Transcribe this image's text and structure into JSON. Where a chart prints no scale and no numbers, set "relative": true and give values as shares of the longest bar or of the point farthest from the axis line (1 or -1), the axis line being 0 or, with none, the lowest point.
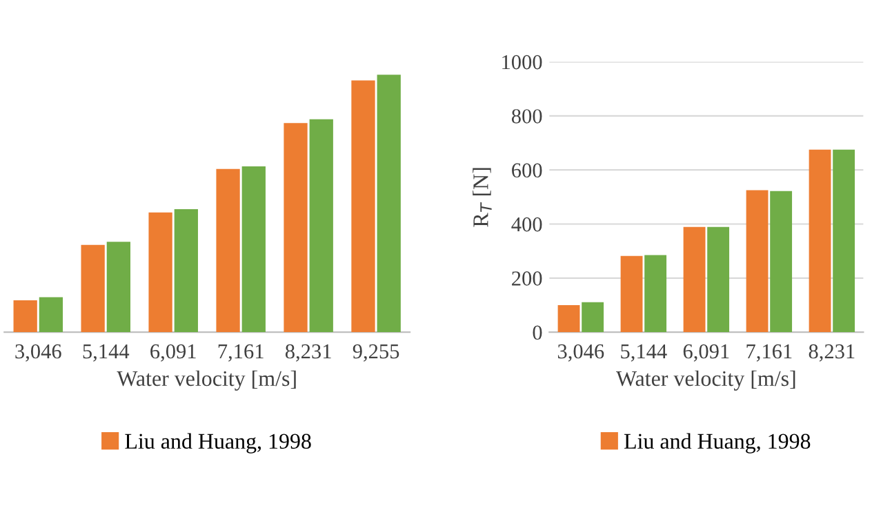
{
  "chart_data": [
    {
      "type": "bar",
      "relative": true,
      "categories": [
        "3,046",
        "5,144",
        "6,091",
        "7,161",
        "8,231",
        "9,255"
      ],
      "xlabel": "Water velocity [m/s]",
      "legend": "bottom",
      "series": [
        {
          "name": "Liu and Huang, 1998",
          "color": "#ed7d31",
          "values": [
            0.124,
            0.339,
            0.465,
            0.634,
            0.812,
            0.978
          ]
        },
        {
          "color": "#70ad47",
          "values": [
            0.136,
            0.351,
            0.478,
            0.644,
            0.827,
            1
          ]
        }
      ]
    },
    {
      "type": "bar",
      "categories": [
        "3,046",
        "5,144",
        "6,091",
        "7,161",
        "8,231"
      ],
      "xlabel": "Water velocity [m/s]",
      "ylabel": "R$_{T}$ [N]",
      "ylim": [
        0,
        1000
      ],
      "yticks": [
        0,
        200,
        400,
        600,
        800,
        1000
      ],
      "grid": "y",
      "legend": "bottom",
      "series": [
        {
          "name": "Liu and Huang, 1998",
          "color": "#ed7d31",
          "values": [
            100,
            282,
            389,
            525,
            675
          ]
        },
        {
          "color": "#70ad47",
          "values": [
            111,
            285,
            389,
            522,
            675
          ]
        }
      ]
    }
  ]
}
